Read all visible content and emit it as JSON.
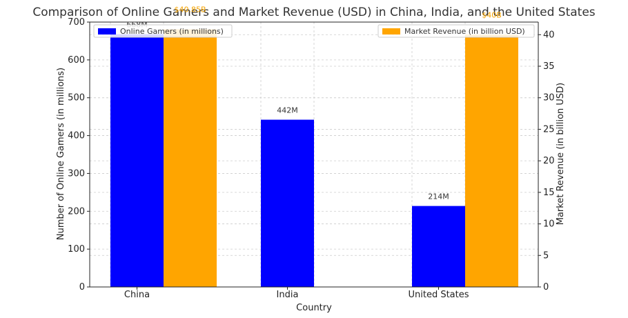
{
  "chart_data": {
    "type": "bar",
    "title": "Comparison of Online Gamers and Market Revenue (USD) in China, India, and the United States",
    "xlabel": "Country",
    "ylabel": "Number of Online Gamers (in millions)",
    "ylabel_right": "Market Revenue (in billion USD)",
    "categories": [
      "China",
      "India",
      "United States"
    ],
    "ylim": [
      0,
      700
    ],
    "ylim_right": [
      0,
      42
    ],
    "yticks": [
      "0",
      "100",
      "200",
      "300",
      "400",
      "500",
      "600",
      "700"
    ],
    "yticks_right": [
      "0",
      "5",
      "10",
      "15",
      "20",
      "25",
      "30",
      "35",
      "40"
    ],
    "grid": true,
    "series": [
      {
        "name": "Online Gamers (in millions)",
        "axis": "left",
        "color": "#0000ff",
        "values": [
          668,
          442,
          214
        ],
        "labels": [
          "668M",
          "442M",
          "214M"
        ],
        "legend_position": "upper-left"
      },
      {
        "name": "Market Revenue (in billion USD)",
        "axis": "right",
        "color": "#ffa500",
        "values": [
          40.85,
          null,
          40
        ],
        "labels": [
          "$40.85B",
          "",
          "$40B"
        ],
        "legend_position": "upper-right"
      }
    ]
  }
}
